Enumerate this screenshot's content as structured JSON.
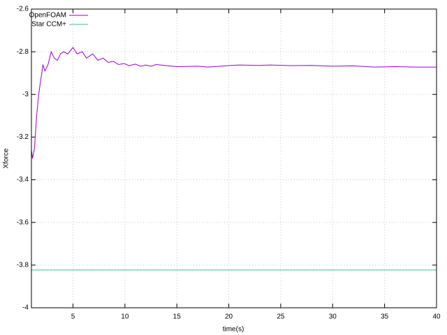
{
  "chart_data": {
    "type": "line",
    "xlabel": "time(s)",
    "ylabel": "Xforce",
    "xlim": [
      1,
      40
    ],
    "ylim": [
      -4,
      -2.6
    ],
    "xticks": [
      5,
      10,
      15,
      20,
      25,
      30,
      35,
      40
    ],
    "yticks": [
      -4,
      -3.8,
      -3.6,
      -3.4,
      -3.2,
      -3,
      -2.8,
      -2.6
    ],
    "grid": true,
    "legend": "top left",
    "series": [
      {
        "name": "OpenFOAM",
        "color": "#9400d3",
        "x": [
          1.0,
          1.1,
          1.3,
          1.5,
          1.7,
          1.9,
          2.0,
          2.1,
          2.3,
          2.6,
          2.9,
          3.2,
          3.5,
          3.8,
          4.1,
          4.5,
          5.0,
          5.4,
          5.9,
          6.3,
          6.9,
          7.4,
          7.9,
          8.4,
          8.9,
          9.4,
          9.9,
          10.4,
          11,
          11.5,
          12,
          12.5,
          13,
          14,
          15,
          17,
          18,
          20,
          21,
          23,
          24,
          26,
          28,
          30,
          32,
          34,
          36,
          38,
          40
        ],
        "values": [
          -3.26,
          -3.3,
          -3.25,
          -3.1,
          -3.0,
          -2.93,
          -2.9,
          -2.86,
          -2.89,
          -2.86,
          -2.8,
          -2.83,
          -2.84,
          -2.81,
          -2.8,
          -2.81,
          -2.78,
          -2.81,
          -2.8,
          -2.83,
          -2.81,
          -2.84,
          -2.83,
          -2.85,
          -2.845,
          -2.86,
          -2.855,
          -2.865,
          -2.858,
          -2.868,
          -2.862,
          -2.868,
          -2.86,
          -2.865,
          -2.87,
          -2.868,
          -2.872,
          -2.865,
          -2.862,
          -2.864,
          -2.862,
          -2.865,
          -2.864,
          -2.868,
          -2.866,
          -2.872,
          -2.87,
          -2.872,
          -2.872
        ]
      },
      {
        "name": "Star CCM+",
        "color": "#3cba9c",
        "x": [
          1,
          40
        ],
        "values": [
          -3.823,
          -3.823
        ]
      }
    ]
  }
}
